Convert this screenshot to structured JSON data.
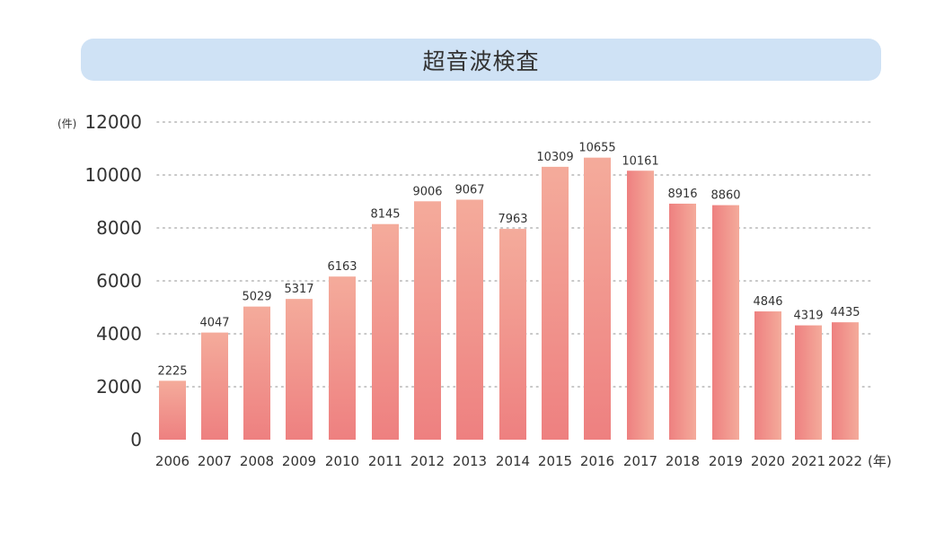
{
  "chart_data": {
    "type": "bar",
    "title": "超音波検査",
    "y_unit": "(件)",
    "x_unit": "(年)",
    "categories": [
      "2006",
      "2007",
      "2008",
      "2009",
      "2010",
      "2011",
      "2012",
      "2013",
      "2014",
      "2015",
      "2016",
      "2017",
      "2018",
      "2019",
      "2020",
      "2021",
      "2022"
    ],
    "values": [
      2225,
      4047,
      5029,
      5317,
      6163,
      8145,
      9006,
      9067,
      7963,
      10309,
      10655,
      10161,
      8916,
      8860,
      4846,
      4319,
      4435
    ],
    "ylim": [
      0,
      12000
    ],
    "yticks": [
      0,
      2000,
      4000,
      6000,
      8000,
      10000,
      12000
    ],
    "grid": true,
    "grid_style": "dotted",
    "legend": "none",
    "bar_color_light": "#f4aa9a",
    "bar_color_dark": "#ee8080",
    "title_bg": "#cfe2f5"
  }
}
